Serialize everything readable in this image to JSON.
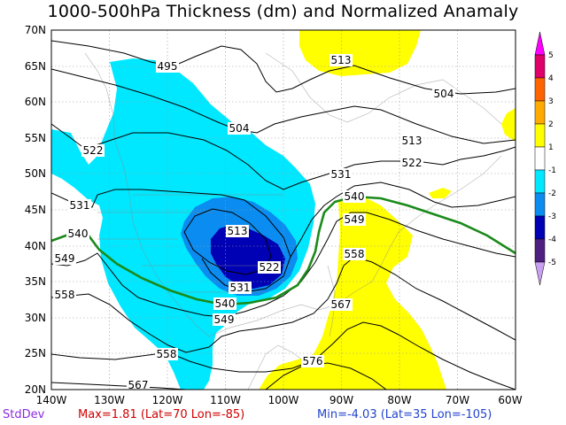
{
  "title": "1000-500hPa Thickness (dm) and Normalized Anamaly",
  "footer": {
    "stddev_label": "StdDev",
    "max_text": "Max=1.81 (Lat=70 Lon=-85)",
    "min_text": "Min=-4.03 (Lat=35 Lon=-105)"
  },
  "axes": {
    "lat_labels": [
      "70N",
      "65N",
      "60N",
      "55N",
      "50N",
      "45N",
      "40N",
      "35N",
      "30N",
      "25N",
      "20N"
    ],
    "lon_labels": [
      "140W",
      "130W",
      "120W",
      "110W",
      "100W",
      "90W",
      "80W",
      "70W",
      "60W"
    ]
  },
  "colorbar": {
    "labels": [
      "5",
      "4",
      "3",
      "2",
      "1",
      "-1",
      "-2",
      "-3",
      "-4",
      "-5"
    ],
    "colors": [
      "#ff00ff",
      "#e0006a",
      "#ff6400",
      "#ffaa00",
      "#ffff00",
      "#ffffff",
      "#00e8ff",
      "#0a8cf0",
      "#0000b4",
      "#502080",
      "#c8a0f0"
    ]
  },
  "anomaly_colors": {
    "pos1": "#ffff00",
    "neg1": "#00e8ff",
    "neg2": "#0a8cf0",
    "neg3": "#0000b4"
  },
  "contour_labels": [
    "495",
    "504",
    "504",
    "513",
    "513",
    "513",
    "522",
    "522",
    "522",
    "531",
    "531",
    "531",
    "540",
    "540",
    "540",
    "549",
    "549",
    "549",
    "558",
    "558",
    "558",
    "567",
    "567",
    "576"
  ],
  "highlight_color": "#1a8a1a"
}
